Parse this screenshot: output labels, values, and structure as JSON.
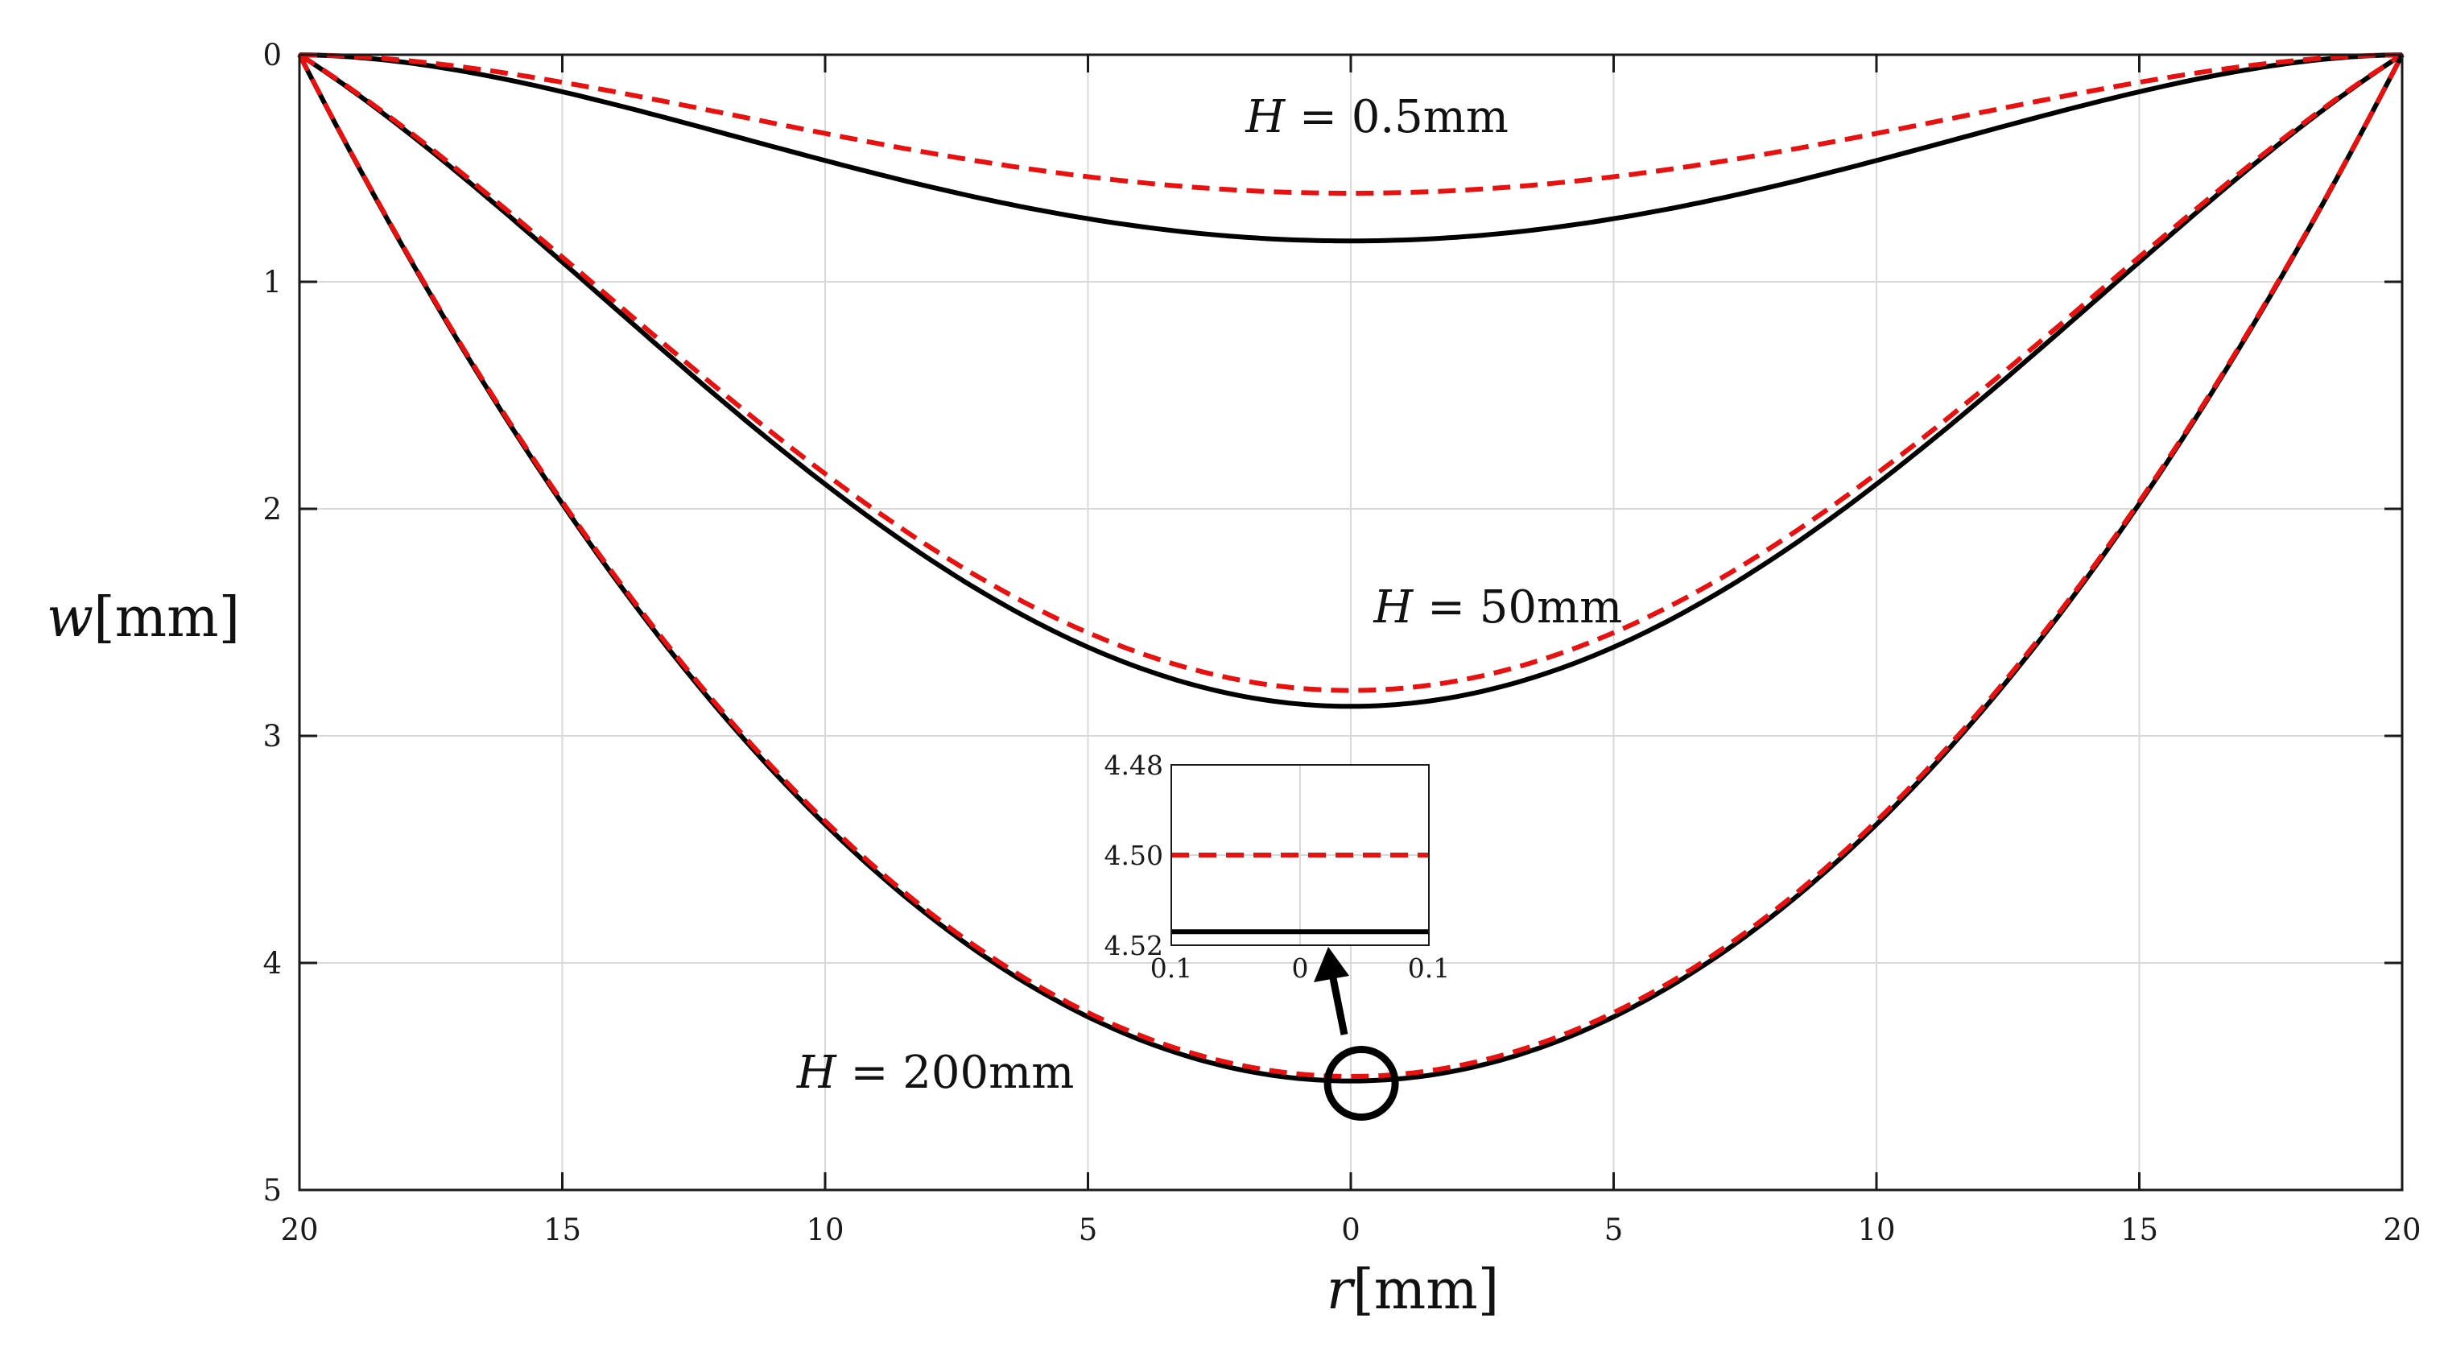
{
  "chart_data": {
    "type": "line",
    "title": "",
    "xlabel": {
      "var": "r",
      "unit": "[mm]"
    },
    "ylabel": {
      "var": "w",
      "unit": "[mm]"
    },
    "xlim": [
      -20,
      20
    ],
    "ylim": [
      0,
      5
    ],
    "y_reversed": true,
    "grid": true,
    "x_ticks": [
      -20,
      -15,
      -10,
      -5,
      0,
      5,
      10,
      15,
      20
    ],
    "x_tick_labels": [
      "20",
      "15",
      "10",
      "5",
      "0",
      "5",
      "10",
      "15",
      "20"
    ],
    "y_ticks": [
      0,
      1,
      2,
      3,
      4,
      5
    ],
    "y_tick_labels": [
      "0",
      "1",
      "2",
      "3",
      "4",
      "5"
    ],
    "series": [
      {
        "name": "H = 0.5mm (solid)",
        "color": "#000000",
        "style": "solid",
        "center": 0.82,
        "shape": "plate"
      },
      {
        "name": "H = 0.5mm (dashed)",
        "color": "#e8110f",
        "style": "dashed",
        "center": 0.61,
        "shape": "plate"
      },
      {
        "name": "H = 50mm (solid)",
        "color": "#000000",
        "style": "solid",
        "center": 2.87,
        "shape": "mixed"
      },
      {
        "name": "H = 50mm (dashed)",
        "color": "#e8110f",
        "style": "dashed",
        "center": 2.8,
        "shape": "mixed"
      },
      {
        "name": "H = 200mm (solid)",
        "color": "#000000",
        "style": "solid",
        "center": 4.52,
        "shape": "membrane"
      },
      {
        "name": "H = 200mm (dashed)",
        "color": "#e8110f",
        "style": "dashed",
        "center": 4.5,
        "shape": "membrane"
      }
    ],
    "annotations": [
      {
        "var": "H",
        "text": " = 0.5mm",
        "x": 0.5,
        "y": 0.34
      },
      {
        "var": "H",
        "text": " = 50mm",
        "x": 2.8,
        "y": 2.5
      },
      {
        "var": "H",
        "text": " = 200mm",
        "x": -7.9,
        "y": 4.55
      }
    ],
    "highlight_circle": {
      "x": 0.2,
      "y": 4.53
    },
    "inset": {
      "xlim": [
        -0.1,
        0.1
      ],
      "ylim": [
        4.48,
        4.52
      ],
      "y_reversed": true,
      "x_tick_labels": [
        "0.1",
        "0",
        "0.1"
      ],
      "y_tick_labels": [
        "4.48",
        "4.50",
        "4.52"
      ],
      "series": [
        {
          "name": "dashed",
          "color": "#e8110f",
          "value": 4.5
        },
        {
          "name": "solid",
          "color": "#000000",
          "value": 4.517
        }
      ]
    }
  }
}
